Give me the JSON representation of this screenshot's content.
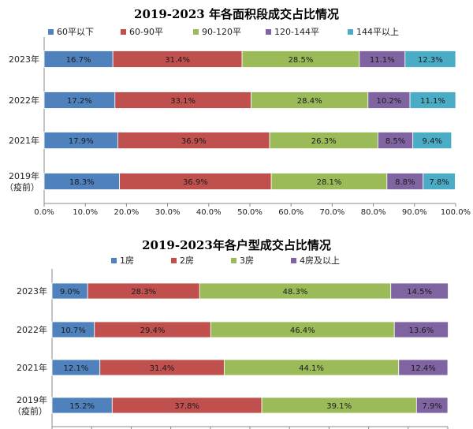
{
  "chart_data": [
    {
      "type": "bar",
      "stacked": true,
      "orientation": "horizontal",
      "title": "2019-2023 年各面积段成交占比情况",
      "categories": [
        "2023年",
        "2022年",
        "2021年",
        "2019年（疫前）"
      ],
      "category_lines": [
        [
          "2023年"
        ],
        [
          "2022年"
        ],
        [
          "2021年"
        ],
        [
          "2019年",
          "（疫前）"
        ]
      ],
      "series": [
        {
          "name": "60平以下",
          "color": "#4f81bd",
          "values": [
            16.7,
            17.2,
            17.9,
            18.3
          ]
        },
        {
          "name": "60-90平",
          "color": "#c0504d",
          "values": [
            31.4,
            33.1,
            36.9,
            36.9
          ]
        },
        {
          "name": "90-120平",
          "color": "#9bbb59",
          "values": [
            28.5,
            28.4,
            26.3,
            28.1
          ]
        },
        {
          "name": "120-144平",
          "color": "#8064a2",
          "values": [
            11.1,
            10.2,
            8.5,
            8.8
          ]
        },
        {
          "name": "144平以上",
          "color": "#4bacc6",
          "values": [
            12.3,
            11.1,
            9.4,
            7.8
          ]
        }
      ],
      "xlim": [
        0,
        100
      ],
      "ticks": [
        "0.0%",
        "10.0%",
        "20.0%",
        "30.0%",
        "40.0%",
        "50.0%",
        "60.0%",
        "70.0%",
        "80.0%",
        "90.0%",
        "100.0%"
      ],
      "legend": "top"
    },
    {
      "type": "bar",
      "stacked": true,
      "orientation": "horizontal",
      "title": "2019-2023年各户型成交占比情况",
      "categories": [
        "2023年",
        "2022年",
        "2021年",
        "2019年（疫前）"
      ],
      "category_lines": [
        [
          "2023年"
        ],
        [
          "2022年"
        ],
        [
          "2021年"
        ],
        [
          "2019年",
          "（疫前）"
        ]
      ],
      "series": [
        {
          "name": "1房",
          "color": "#4f81bd",
          "values": [
            9.0,
            10.7,
            12.1,
            15.2
          ]
        },
        {
          "name": "2房",
          "color": "#c0504d",
          "values": [
            28.3,
            29.4,
            31.4,
            37.8
          ]
        },
        {
          "name": "3房",
          "color": "#9bbb59",
          "values": [
            48.3,
            46.4,
            44.1,
            39.1
          ]
        },
        {
          "name": "4房及以上",
          "color": "#8064a2",
          "values": [
            14.5,
            13.6,
            12.4,
            7.9
          ]
        }
      ],
      "xlim": [
        0,
        100
      ],
      "legend": "top"
    }
  ]
}
